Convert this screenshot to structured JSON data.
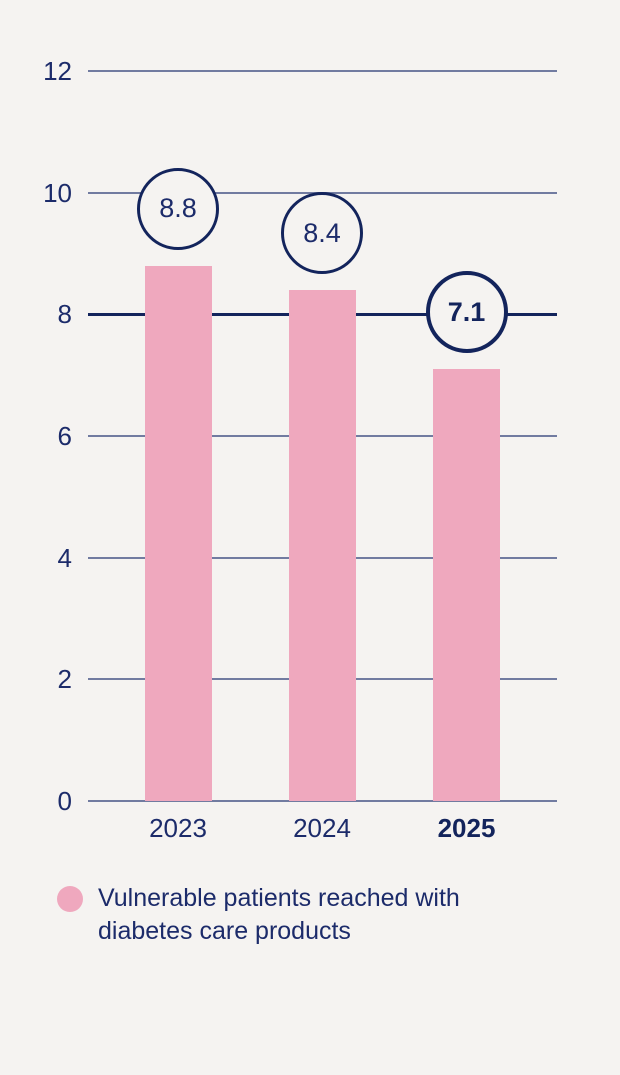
{
  "colors": {
    "background": "#f5f3f1",
    "bar_pink": "#efa8be",
    "navy_text": "#1c2b6a",
    "circle_stroke": "#13245c",
    "gridline": "rgba(33,48,110,0.62)"
  },
  "chart_data": {
    "type": "bar",
    "title": "",
    "xlabel": "",
    "ylabel": "",
    "categories": [
      "2023",
      "2024",
      "2025"
    ],
    "values": [
      8.8,
      8.4,
      7.1
    ],
    "value_labels": [
      "8.8",
      "8.4",
      "7.1"
    ],
    "highlighted_category": "2025",
    "ylim": [
      0,
      12
    ],
    "yticks": [
      12,
      10,
      8,
      6,
      4,
      2,
      0
    ],
    "grid": true,
    "emphasized_gridline": 8,
    "legend_position": "bottom-left",
    "legend": {
      "label": "Vulnerable patients reached with diabetes care products",
      "lines": [
        "Vulnerable patients reached with",
        "diabetes care products"
      ],
      "swatch_color": "#efa8be"
    }
  }
}
